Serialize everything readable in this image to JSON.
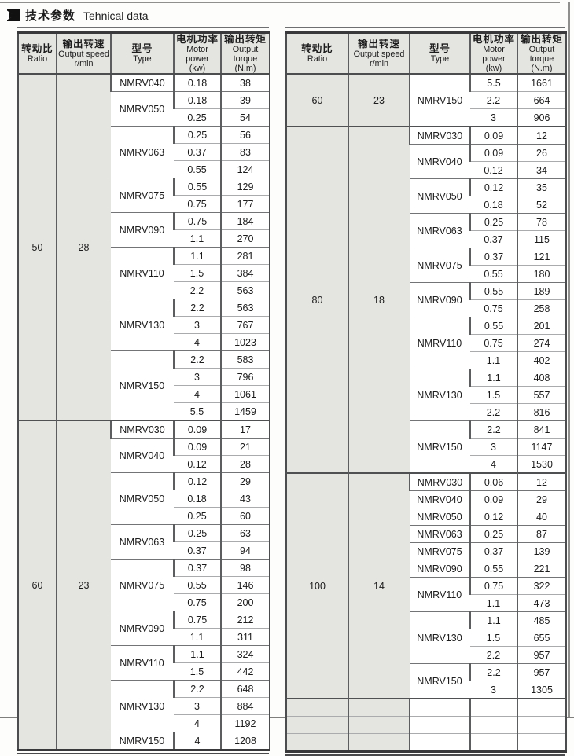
{
  "page": {
    "title_cn": "技术参数",
    "title_en": "Tehnical data"
  },
  "table_headers": {
    "ratio_cn": "转动比",
    "ratio_en": "Ratio",
    "speed_cn": "输出转速",
    "speed_en": "Output speed",
    "speed_unit": "r/min",
    "type_cn": "型号",
    "type_en": "Type",
    "power_cn": "电机功率",
    "power_en": "Motor power",
    "power_unit": "(kw)",
    "torque_cn": "输出转矩",
    "torque_en": "Output torque",
    "torque_unit": "(N.m)"
  },
  "left_table": {
    "sections": [
      {
        "ratio": "50",
        "speed": "28",
        "types": [
          {
            "type": "NMRV040",
            "rows": [
              [
                "0.18",
                "38"
              ]
            ]
          },
          {
            "type": "NMRV050",
            "rows": [
              [
                "0.18",
                "39"
              ],
              [
                "0.25",
                "54"
              ]
            ]
          },
          {
            "type": "NMRV063",
            "rows": [
              [
                "0.25",
                "56"
              ],
              [
                "0.37",
                "83"
              ],
              [
                "0.55",
                "124"
              ]
            ]
          },
          {
            "type": "NMRV075",
            "rows": [
              [
                "0.55",
                "129"
              ],
              [
                "0.75",
                "177"
              ]
            ]
          },
          {
            "type": "NMRV090",
            "rows": [
              [
                "0.75",
                "184"
              ],
              [
                "1.1",
                "270"
              ]
            ]
          },
          {
            "type": "NMRV110",
            "rows": [
              [
                "1.1",
                "281"
              ],
              [
                "1.5",
                "384"
              ],
              [
                "2.2",
                "563"
              ]
            ]
          },
          {
            "type": "NMRV130",
            "rows": [
              [
                "2.2",
                "563"
              ],
              [
                "3",
                "767"
              ],
              [
                "4",
                "1023"
              ]
            ]
          },
          {
            "type": "NMRV150",
            "rows": [
              [
                "2.2",
                "583"
              ],
              [
                "3",
                "796"
              ],
              [
                "4",
                "1061"
              ],
              [
                "5.5",
                "1459"
              ]
            ]
          }
        ]
      },
      {
        "ratio": "60",
        "speed": "23",
        "types": [
          {
            "type": "NMRV030",
            "rows": [
              [
                "0.09",
                "17"
              ]
            ]
          },
          {
            "type": "NMRV040",
            "rows": [
              [
                "0.09",
                "21"
              ],
              [
                "0.12",
                "28"
              ]
            ]
          },
          {
            "type": "NMRV050",
            "rows": [
              [
                "0.12",
                "29"
              ],
              [
                "0.18",
                "43"
              ],
              [
                "0.25",
                "60"
              ]
            ]
          },
          {
            "type": "NMRV063",
            "rows": [
              [
                "0.25",
                "63"
              ],
              [
                "0.37",
                "94"
              ]
            ]
          },
          {
            "type": "NMRV075",
            "rows": [
              [
                "0.37",
                "98"
              ],
              [
                "0.55",
                "146"
              ],
              [
                "0.75",
                "200"
              ]
            ]
          },
          {
            "type": "NMRV090",
            "rows": [
              [
                "0.75",
                "212"
              ],
              [
                "1.1",
                "311"
              ]
            ]
          },
          {
            "type": "NMRV110",
            "rows": [
              [
                "1.1",
                "324"
              ],
              [
                "1.5",
                "442"
              ]
            ]
          },
          {
            "type": "NMRV130",
            "rows": [
              [
                "2.2",
                "648"
              ],
              [
                "3",
                "884"
              ],
              [
                "4",
                "1192"
              ]
            ]
          },
          {
            "type": "NMRV150",
            "rows": [
              [
                "4",
                "1208"
              ]
            ]
          }
        ]
      }
    ]
  },
  "right_table": {
    "sections": [
      {
        "ratio": "60",
        "speed": "23",
        "types": [
          {
            "type": "NMRV150",
            "rows": [
              [
                "5.5",
                "1661"
              ],
              [
                "2.2",
                "664"
              ],
              [
                "3",
                "906"
              ]
            ]
          }
        ]
      },
      {
        "ratio": "80",
        "speed": "18",
        "types": [
          {
            "type": "NMRV030",
            "rows": [
              [
                "0.09",
                "12"
              ]
            ]
          },
          {
            "type": "NMRV040",
            "rows": [
              [
                "0.09",
                "26"
              ],
              [
                "0.12",
                "34"
              ]
            ]
          },
          {
            "type": "NMRV050",
            "rows": [
              [
                "0.12",
                "35"
              ],
              [
                "0.18",
                "52"
              ]
            ]
          },
          {
            "type": "NMRV063",
            "rows": [
              [
                "0.25",
                "78"
              ],
              [
                "0.37",
                "115"
              ]
            ]
          },
          {
            "type": "NMRV075",
            "rows": [
              [
                "0.37",
                "121"
              ],
              [
                "0.55",
                "180"
              ]
            ]
          },
          {
            "type": "NMRV090",
            "rows": [
              [
                "0.55",
                "189"
              ],
              [
                "0.75",
                "258"
              ]
            ]
          },
          {
            "type": "NMRV110",
            "rows": [
              [
                "0.55",
                "201"
              ],
              [
                "0.75",
                "274"
              ],
              [
                "1.1",
                "402"
              ]
            ]
          },
          {
            "type": "NMRV130",
            "rows": [
              [
                "1.1",
                "408"
              ],
              [
                "1.5",
                "557"
              ],
              [
                "2.2",
                "816"
              ]
            ]
          },
          {
            "type": "NMRV150",
            "rows": [
              [
                "2.2",
                "841"
              ],
              [
                "3",
                "1147"
              ],
              [
                "4",
                "1530"
              ]
            ]
          }
        ]
      },
      {
        "ratio": "100",
        "speed": "14",
        "types": [
          {
            "type": "NMRV030",
            "rows": [
              [
                "0.06",
                "12"
              ]
            ]
          },
          {
            "type": "NMRV040",
            "rows": [
              [
                "0.09",
                "29"
              ]
            ]
          },
          {
            "type": "NMRV050",
            "rows": [
              [
                "0.12",
                "40"
              ]
            ]
          },
          {
            "type": "NMRV063",
            "rows": [
              [
                "0.25",
                "87"
              ]
            ]
          },
          {
            "type": "NMRV075",
            "rows": [
              [
                "0.37",
                "139"
              ]
            ]
          },
          {
            "type": "NMRV090",
            "rows": [
              [
                "0.55",
                "221"
              ]
            ]
          },
          {
            "type": "NMRV110",
            "rows": [
              [
                "0.75",
                "322"
              ],
              [
                "1.1",
                "473"
              ]
            ]
          },
          {
            "type": "NMRV130",
            "rows": [
              [
                "1.1",
                "485"
              ],
              [
                "1.5",
                "655"
              ],
              [
                "2.2",
                "957"
              ]
            ]
          },
          {
            "type": "NMRV150",
            "rows": [
              [
                "2.2",
                "957"
              ],
              [
                "3",
                "1305"
              ]
            ]
          }
        ]
      },
      {
        "ratio": "",
        "speed": "",
        "empty_rows": 3
      }
    ]
  },
  "colors": {
    "cell_shade": "#e4e4e1",
    "border_dark": "#4c4d4f",
    "border_light": "#a9abad",
    "icon": "#111111"
  }
}
